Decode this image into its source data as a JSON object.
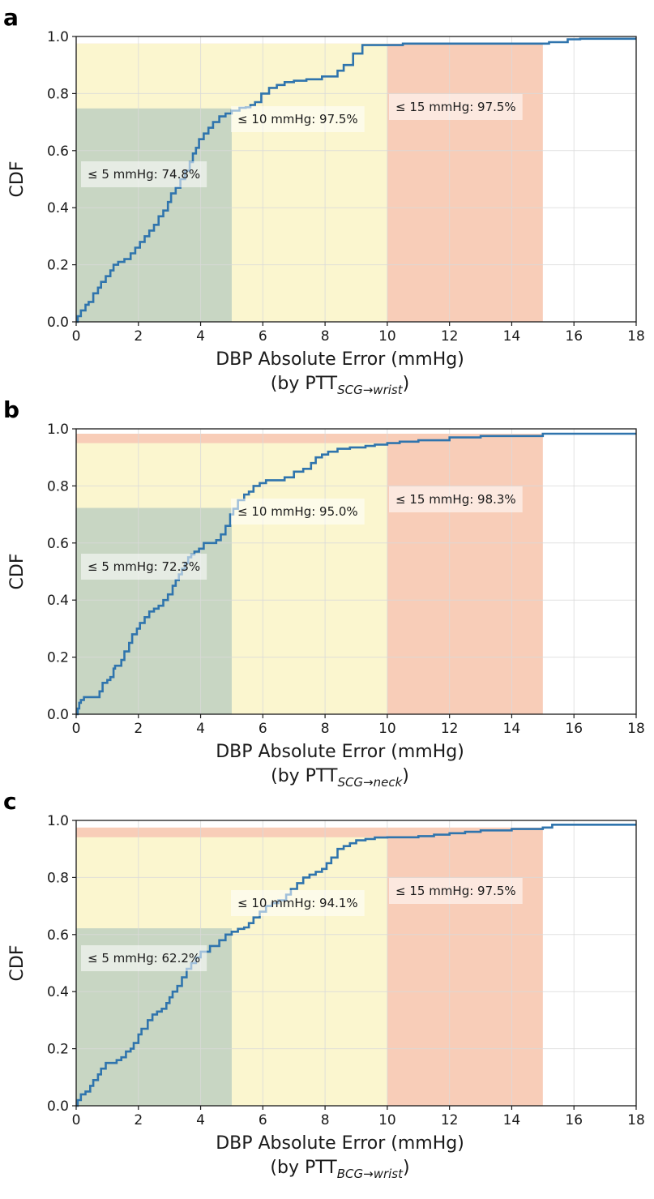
{
  "chart_data": [
    {
      "type": "line",
      "panel_label": "a",
      "xlabel": "DBP Absolute Error (mmHg)",
      "xlabel_sub": {
        "prefix": "(by PTT",
        "subscript": "SCG→wrist",
        "suffix": ")"
      },
      "ylabel": "CDF",
      "xlim": [
        0,
        18
      ],
      "ylim": [
        0,
        1.0
      ],
      "xticks": [
        "0",
        "2",
        "4",
        "6",
        "8",
        "10",
        "12",
        "14",
        "16",
        "18"
      ],
      "yticks": [
        "0.0",
        "0.2",
        "0.4",
        "0.6",
        "0.8",
        "1.0"
      ],
      "grid": true,
      "regions": [
        {
          "x0": 0,
          "x1": 5,
          "y": 0.748,
          "color": "#c8d6c3",
          "label": "≤ 5 mmHg: 74.8%"
        },
        {
          "x0": 0,
          "x1": 10,
          "y": 0.975,
          "color": "#fbf6cf",
          "label": "≤ 10 mmHg: 97.5%"
        },
        {
          "x0": 0,
          "x1": 15,
          "y": 0.975,
          "color": "#f8cdb8",
          "label": "≤ 15 mmHg: 97.5%"
        }
      ],
      "series": [
        {
          "color": "#2f74ad",
          "x": [
            0,
            0.05,
            0.15,
            0.3,
            0.4,
            0.55,
            0.7,
            0.8,
            0.95,
            1.1,
            1.2,
            1.35,
            1.55,
            1.75,
            1.9,
            2.05,
            2.2,
            2.35,
            2.5,
            2.65,
            2.8,
            2.95,
            3.05,
            3.2,
            3.35,
            3.5,
            3.65,
            3.75,
            3.85,
            3.95,
            4.1,
            4.25,
            4.4,
            4.6,
            4.8,
            5.0,
            5.25,
            5.45,
            5.6,
            5.75,
            5.95,
            6.2,
            6.45,
            6.7,
            7.0,
            7.4,
            7.9,
            8.4,
            8.6,
            8.9,
            9.2,
            10.5,
            12.5,
            13.5,
            14.6,
            15.2,
            15.8,
            16.2,
            18.0
          ],
          "y": [
            0,
            0.02,
            0.04,
            0.06,
            0.07,
            0.1,
            0.12,
            0.14,
            0.16,
            0.18,
            0.2,
            0.21,
            0.22,
            0.24,
            0.26,
            0.28,
            0.3,
            0.32,
            0.34,
            0.37,
            0.39,
            0.42,
            0.45,
            0.47,
            0.5,
            0.53,
            0.56,
            0.59,
            0.61,
            0.64,
            0.66,
            0.68,
            0.7,
            0.72,
            0.73,
            0.74,
            0.75,
            0.752,
            0.76,
            0.77,
            0.8,
            0.82,
            0.83,
            0.84,
            0.845,
            0.85,
            0.86,
            0.88,
            0.9,
            0.94,
            0.97,
            0.975,
            0.975,
            0.975,
            0.975,
            0.98,
            0.99,
            0.992,
            0.992
          ]
        }
      ]
    },
    {
      "type": "line",
      "panel_label": "b",
      "xlabel": "DBP Absolute Error (mmHg)",
      "xlabel_sub": {
        "prefix": "(by PTT",
        "subscript": "SCG→neck",
        "suffix": ")"
      },
      "ylabel": "CDF",
      "xlim": [
        0,
        18
      ],
      "ylim": [
        0,
        1.0
      ],
      "xticks": [
        "0",
        "2",
        "4",
        "6",
        "8",
        "10",
        "12",
        "14",
        "16",
        "18"
      ],
      "yticks": [
        "0.0",
        "0.2",
        "0.4",
        "0.6",
        "0.8",
        "1.0"
      ],
      "grid": true,
      "regions": [
        {
          "x0": 0,
          "x1": 5,
          "y": 0.723,
          "color": "#c8d6c3",
          "label": "≤ 5 mmHg: 72.3%"
        },
        {
          "x0": 0,
          "x1": 10,
          "y": 0.95,
          "color": "#fbf6cf",
          "label": "≤ 10 mmHg: 95.0%"
        },
        {
          "x0": 0,
          "x1": 15,
          "y": 0.983,
          "color": "#f8cdb8",
          "label": "≤ 15 mmHg: 98.3%"
        }
      ],
      "series": [
        {
          "color": "#2f74ad",
          "x": [
            0,
            0.05,
            0.1,
            0.15,
            0.25,
            0.6,
            0.75,
            0.85,
            1.0,
            1.1,
            1.2,
            1.25,
            1.45,
            1.55,
            1.7,
            1.8,
            1.95,
            2.05,
            2.2,
            2.35,
            2.5,
            2.65,
            2.8,
            2.95,
            3.1,
            3.2,
            3.3,
            3.4,
            3.5,
            3.6,
            3.7,
            3.8,
            3.95,
            4.1,
            4.5,
            4.65,
            4.8,
            4.95,
            5.05,
            5.2,
            5.4,
            5.55,
            5.7,
            5.9,
            6.1,
            6.4,
            6.7,
            7.0,
            7.3,
            7.55,
            7.7,
            7.9,
            8.1,
            8.4,
            8.8,
            9.3,
            9.6,
            10.0,
            10.4,
            11.0,
            12.0,
            13.0,
            15.0,
            18.0
          ],
          "y": [
            0,
            0.02,
            0.04,
            0.05,
            0.06,
            0.06,
            0.08,
            0.11,
            0.12,
            0.13,
            0.16,
            0.17,
            0.19,
            0.22,
            0.25,
            0.28,
            0.3,
            0.32,
            0.34,
            0.36,
            0.37,
            0.38,
            0.4,
            0.42,
            0.45,
            0.47,
            0.49,
            0.51,
            0.53,
            0.55,
            0.56,
            0.57,
            0.58,
            0.6,
            0.61,
            0.63,
            0.66,
            0.7,
            0.72,
            0.75,
            0.77,
            0.78,
            0.8,
            0.81,
            0.82,
            0.82,
            0.83,
            0.85,
            0.86,
            0.88,
            0.9,
            0.91,
            0.92,
            0.93,
            0.935,
            0.94,
            0.945,
            0.95,
            0.955,
            0.96,
            0.97,
            0.975,
            0.983,
            0.983
          ]
        }
      ]
    },
    {
      "type": "line",
      "panel_label": "c",
      "xlabel": "DBP Absolute Error (mmHg)",
      "xlabel_sub": {
        "prefix": "(by PTT",
        "subscript": "BCG→wrist",
        "suffix": ")"
      },
      "ylabel": "CDF",
      "xlim": [
        0,
        18
      ],
      "ylim": [
        0,
        1.0
      ],
      "xticks": [
        "0",
        "2",
        "4",
        "6",
        "8",
        "10",
        "12",
        "14",
        "16",
        "18"
      ],
      "yticks": [
        "0.0",
        "0.2",
        "0.4",
        "0.6",
        "0.8",
        "1.0"
      ],
      "grid": true,
      "regions": [
        {
          "x0": 0,
          "x1": 5,
          "y": 0.622,
          "color": "#c8d6c3",
          "label": "≤ 5 mmHg: 62.2%"
        },
        {
          "x0": 0,
          "x1": 10,
          "y": 0.941,
          "color": "#fbf6cf",
          "label": "≤ 10 mmHg: 94.1%"
        },
        {
          "x0": 0,
          "x1": 15,
          "y": 0.975,
          "color": "#f8cdb8",
          "label": "≤ 15 mmHg: 97.5%"
        }
      ],
      "series": [
        {
          "color": "#2f74ad",
          "x": [
            0,
            0.05,
            0.15,
            0.3,
            0.45,
            0.55,
            0.7,
            0.8,
            0.95,
            1.1,
            1.3,
            1.45,
            1.6,
            1.75,
            1.85,
            2.0,
            2.1,
            2.3,
            2.45,
            2.6,
            2.75,
            2.9,
            3.0,
            3.1,
            3.25,
            3.4,
            3.55,
            3.7,
            3.85,
            4.0,
            4.3,
            4.6,
            4.8,
            5.0,
            5.2,
            5.4,
            5.55,
            5.7,
            5.9,
            6.1,
            6.3,
            6.5,
            6.75,
            6.9,
            7.1,
            7.3,
            7.5,
            7.7,
            7.9,
            8.05,
            8.2,
            8.4,
            8.6,
            8.8,
            9.0,
            9.3,
            9.6,
            10.0,
            11.0,
            11.5,
            12.0,
            12.5,
            13.0,
            14.0,
            15.0,
            15.3,
            18.0
          ],
          "y": [
            0,
            0.02,
            0.04,
            0.05,
            0.07,
            0.09,
            0.11,
            0.13,
            0.15,
            0.15,
            0.16,
            0.17,
            0.19,
            0.2,
            0.22,
            0.25,
            0.27,
            0.3,
            0.32,
            0.33,
            0.34,
            0.36,
            0.38,
            0.4,
            0.42,
            0.45,
            0.48,
            0.5,
            0.52,
            0.54,
            0.56,
            0.58,
            0.6,
            0.61,
            0.62,
            0.625,
            0.64,
            0.66,
            0.68,
            0.7,
            0.71,
            0.72,
            0.74,
            0.76,
            0.78,
            0.8,
            0.81,
            0.82,
            0.83,
            0.85,
            0.87,
            0.9,
            0.91,
            0.92,
            0.93,
            0.935,
            0.94,
            0.941,
            0.945,
            0.95,
            0.955,
            0.96,
            0.965,
            0.97,
            0.975,
            0.985,
            0.985
          ]
        }
      ]
    }
  ]
}
